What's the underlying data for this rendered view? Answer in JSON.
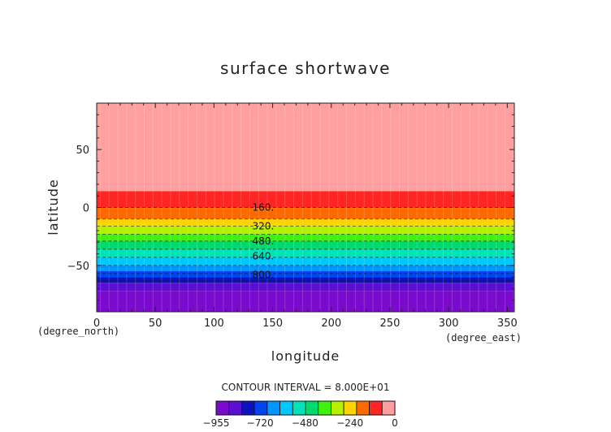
{
  "chart_data": {
    "type": "heatmap",
    "title": "surface shortwave",
    "xlabel": "longitude",
    "ylabel": "latitude",
    "x_units": "(degree_east)",
    "y_units": "(degree_north)",
    "xlim": [
      0,
      356
    ],
    "ylim": [
      -90,
      90
    ],
    "x_ticks": [
      0,
      50,
      100,
      150,
      200,
      250,
      300,
      350
    ],
    "y_ticks": [
      -50,
      0,
      50
    ],
    "y_tick_labels": [
      "−50",
      "0",
      "50"
    ],
    "contour_interval_text": "CONTOUR INTERVAL = 8.000E+01",
    "contour_labels": [
      {
        "text": "160.",
        "lon": 135,
        "lat": 0
      },
      {
        "text": "320.",
        "lon": 135,
        "lat": -16
      },
      {
        "text": "480.",
        "lon": 135,
        "lat": -29
      },
      {
        "text": "640.",
        "lon": 135,
        "lat": -42
      },
      {
        "text": "800.",
        "lon": 135,
        "lat": -58
      }
    ],
    "bands": [
      {
        "lat_from": 14,
        "lat_to": 90,
        "color": "#ff9f9f"
      },
      {
        "lat_from": 0,
        "lat_to": 14,
        "color": "#ff2525"
      },
      {
        "lat_from": -10,
        "lat_to": 0,
        "color": "#ff6a00"
      },
      {
        "lat_from": -16,
        "lat_to": -10,
        "color": "#ffd200"
      },
      {
        "lat_from": -23,
        "lat_to": -16,
        "color": "#b4f000"
      },
      {
        "lat_from": -29,
        "lat_to": -23,
        "color": "#3ff010"
      },
      {
        "lat_from": -36,
        "lat_to": -29,
        "color": "#00d96e"
      },
      {
        "lat_from": -43,
        "lat_to": -36,
        "color": "#00e3b8"
      },
      {
        "lat_from": -50,
        "lat_to": -43,
        "color": "#00c8ff"
      },
      {
        "lat_from": -55,
        "lat_to": -50,
        "color": "#0096ff"
      },
      {
        "lat_from": -60,
        "lat_to": -55,
        "color": "#0045f0"
      },
      {
        "lat_from": -65,
        "lat_to": -60,
        "color": "#0a14b8"
      },
      {
        "lat_from": -72,
        "lat_to": -65,
        "color": "#5a0fd2"
      },
      {
        "lat_from": -90,
        "lat_to": -72,
        "color": "#7a0acc"
      }
    ],
    "dashed_contour_lats": [
      0,
      -10,
      -16,
      -23,
      -29,
      -36,
      -43,
      -50,
      -57,
      -64
    ],
    "colorbar": {
      "colors": [
        "#7a0acc",
        "#5a0fd2",
        "#0a14b8",
        "#0045f0",
        "#0096ff",
        "#00c8ff",
        "#00e3b8",
        "#00d96e",
        "#3ff010",
        "#b4f000",
        "#ffd200",
        "#ff6a00",
        "#ff2525",
        "#ff9f9f"
      ],
      "labels": [
        "−955",
        "−720",
        "−480",
        "−240",
        "0"
      ],
      "label_values": [
        -955,
        -720,
        -480,
        -240,
        0
      ],
      "min": -955,
      "max": 0
    }
  }
}
